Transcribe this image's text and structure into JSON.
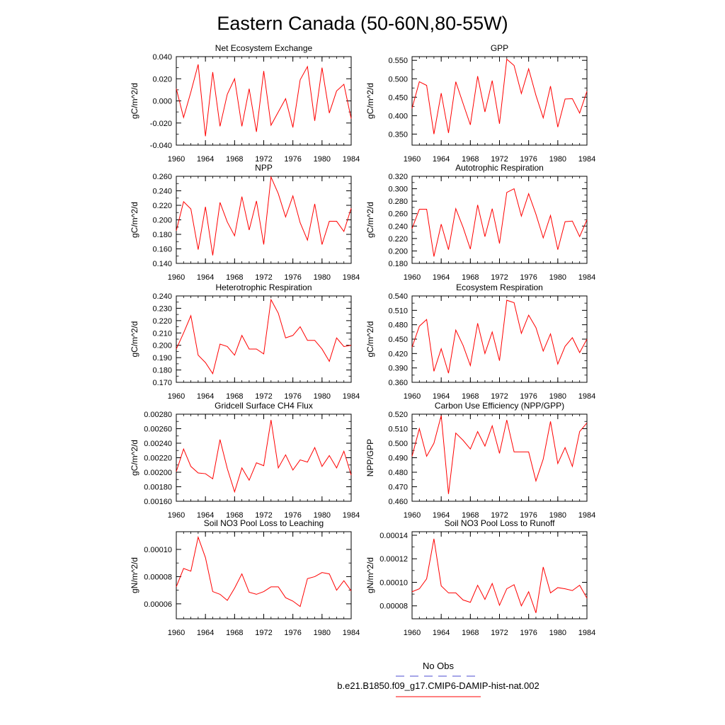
{
  "title": "Eastern Canada (50-60N,80-55W)",
  "legend": {
    "items": [
      {
        "label": "No Obs",
        "color": "#4b4bd0",
        "dash": true
      },
      {
        "label": "b.e21.B1850.f09_g17.CMIP6-DAMIP-hist-nat.002",
        "color": "#ff0000",
        "dash": false
      }
    ]
  },
  "chart_data": [
    {
      "type": "line",
      "title": "Net Ecosystem Exchange",
      "ylabel": "gC/m^2/d",
      "x": [
        1960,
        1961,
        1962,
        1963,
        1964,
        1965,
        1966,
        1967,
        1968,
        1969,
        1970,
        1971,
        1972,
        1973,
        1974,
        1975,
        1976,
        1977,
        1978,
        1979,
        1980,
        1981,
        1982,
        1983,
        1984
      ],
      "series": [
        {
          "color": "#ff0000",
          "values": [
            0.011,
            -0.015,
            0.008,
            0.033,
            -0.032,
            0.026,
            -0.023,
            0.006,
            0.02,
            -0.023,
            0.011,
            -0.028,
            0.027,
            -0.022,
            -0.01,
            0.002,
            -0.024,
            0.019,
            0.031,
            -0.018,
            0.03,
            -0.011,
            0.009,
            0.015,
            -0.016
          ]
        }
      ],
      "xlim": [
        1960,
        1984
      ],
      "ylim": [
        -0.04,
        0.04
      ],
      "xticks": [
        1960,
        1964,
        1968,
        1972,
        1976,
        1980,
        1984
      ],
      "yticks": [
        "-0.040",
        "-0.020",
        "0.000",
        "0.020",
        "0.040"
      ]
    },
    {
      "type": "line",
      "title": "GPP",
      "ylabel": "gC/m^2/d",
      "x": [
        1960,
        1961,
        1962,
        1963,
        1964,
        1965,
        1966,
        1967,
        1968,
        1969,
        1970,
        1971,
        1972,
        1973,
        1974,
        1975,
        1976,
        1977,
        1978,
        1979,
        1980,
        1981,
        1982,
        1983,
        1984
      ],
      "series": [
        {
          "color": "#ff0000",
          "values": [
            0.42,
            0.492,
            0.482,
            0.35,
            0.461,
            0.353,
            0.492,
            0.433,
            0.375,
            0.507,
            0.41,
            0.495,
            0.378,
            0.553,
            0.536,
            0.46,
            0.527,
            0.455,
            0.394,
            0.48,
            0.369,
            0.445,
            0.446,
            0.407,
            0.466
          ]
        }
      ],
      "xlim": [
        1960,
        1984
      ],
      "ylim": [
        0.32,
        0.56
      ],
      "xticks": [
        1960,
        1964,
        1968,
        1972,
        1976,
        1980,
        1984
      ],
      "yticks": [
        "0.350",
        "0.400",
        "0.450",
        "0.500",
        "0.550"
      ]
    },
    {
      "type": "line",
      "title": "NPP",
      "ylabel": "gC/m^2/d",
      "x": [
        1960,
        1961,
        1962,
        1963,
        1964,
        1965,
        1966,
        1967,
        1968,
        1969,
        1970,
        1971,
        1972,
        1973,
        1974,
        1975,
        1976,
        1977,
        1978,
        1979,
        1980,
        1981,
        1982,
        1983,
        1984
      ],
      "series": [
        {
          "color": "#ff0000",
          "values": [
            0.185,
            0.225,
            0.215,
            0.159,
            0.218,
            0.151,
            0.224,
            0.197,
            0.178,
            0.232,
            0.186,
            0.226,
            0.166,
            0.259,
            0.236,
            0.204,
            0.233,
            0.196,
            0.172,
            0.222,
            0.166,
            0.198,
            0.198,
            0.184,
            0.216
          ]
        }
      ],
      "xlim": [
        1960,
        1984
      ],
      "ylim": [
        0.14,
        0.26
      ],
      "xticks": [
        1960,
        1964,
        1968,
        1972,
        1976,
        1980,
        1984
      ],
      "yticks": [
        "0.140",
        "0.160",
        "0.180",
        "0.200",
        "0.220",
        "0.240",
        "0.260"
      ]
    },
    {
      "type": "line",
      "title": "Autotrophic Respiration",
      "ylabel": "gC/m^2/d",
      "x": [
        1960,
        1961,
        1962,
        1963,
        1964,
        1965,
        1966,
        1967,
        1968,
        1969,
        1970,
        1971,
        1972,
        1973,
        1974,
        1975,
        1976,
        1977,
        1978,
        1979,
        1980,
        1981,
        1982,
        1983,
        1984
      ],
      "series": [
        {
          "color": "#ff0000",
          "values": [
            0.236,
            0.267,
            0.267,
            0.191,
            0.243,
            0.202,
            0.268,
            0.238,
            0.203,
            0.274,
            0.223,
            0.268,
            0.212,
            0.294,
            0.3,
            0.256,
            0.292,
            0.259,
            0.221,
            0.257,
            0.202,
            0.247,
            0.248,
            0.223,
            0.25
          ]
        }
      ],
      "xlim": [
        1960,
        1984
      ],
      "ylim": [
        0.18,
        0.32
      ],
      "xticks": [
        1960,
        1964,
        1968,
        1972,
        1976,
        1980,
        1984
      ],
      "yticks": [
        "0.180",
        "0.200",
        "0.220",
        "0.240",
        "0.260",
        "0.280",
        "0.300",
        "0.320"
      ]
    },
    {
      "type": "line",
      "title": "Heterotrophic Respiration",
      "ylabel": "gC/m^2/d",
      "x": [
        1960,
        1961,
        1962,
        1963,
        1964,
        1965,
        1966,
        1967,
        1968,
        1969,
        1970,
        1971,
        1972,
        1973,
        1974,
        1975,
        1976,
        1977,
        1978,
        1979,
        1980,
        1981,
        1982,
        1983,
        1984
      ],
      "series": [
        {
          "color": "#ff0000",
          "values": [
            0.197,
            0.21,
            0.224,
            0.192,
            0.186,
            0.177,
            0.201,
            0.199,
            0.192,
            0.208,
            0.197,
            0.197,
            0.193,
            0.237,
            0.226,
            0.206,
            0.208,
            0.215,
            0.204,
            0.204,
            0.197,
            0.187,
            0.206,
            0.199,
            0.2
          ]
        }
      ],
      "xlim": [
        1960,
        1984
      ],
      "ylim": [
        0.17,
        0.24
      ],
      "xticks": [
        1960,
        1964,
        1968,
        1972,
        1976,
        1980,
        1984
      ],
      "yticks": [
        "0.170",
        "0.180",
        "0.190",
        "0.200",
        "0.210",
        "0.220",
        "0.230",
        "0.240"
      ]
    },
    {
      "type": "line",
      "title": "Ecosystem Respiration",
      "ylabel": "gC/m^2/d",
      "x": [
        1960,
        1961,
        1962,
        1963,
        1964,
        1965,
        1966,
        1967,
        1968,
        1969,
        1970,
        1971,
        1972,
        1973,
        1974,
        1975,
        1976,
        1977,
        1978,
        1979,
        1980,
        1981,
        1982,
        1983,
        1984
      ],
      "series": [
        {
          "color": "#ff0000",
          "values": [
            0.433,
            0.477,
            0.491,
            0.383,
            0.43,
            0.379,
            0.469,
            0.437,
            0.395,
            0.483,
            0.42,
            0.465,
            0.405,
            0.531,
            0.526,
            0.462,
            0.5,
            0.474,
            0.425,
            0.461,
            0.398,
            0.435,
            0.453,
            0.422,
            0.45
          ]
        }
      ],
      "xlim": [
        1960,
        1984
      ],
      "ylim": [
        0.36,
        0.54
      ],
      "xticks": [
        1960,
        1964,
        1968,
        1972,
        1976,
        1980,
        1984
      ],
      "yticks": [
        "0.360",
        "0.390",
        "0.420",
        "0.450",
        "0.480",
        "0.510",
        "0.540"
      ]
    },
    {
      "type": "line",
      "title": "Gridcell Surface CH4 Flux",
      "ylabel": "gC/m^2/d",
      "x": [
        1960,
        1961,
        1962,
        1963,
        1964,
        1965,
        1966,
        1967,
        1968,
        1969,
        1970,
        1971,
        1972,
        1973,
        1974,
        1975,
        1976,
        1977,
        1978,
        1979,
        1980,
        1981,
        1982,
        1983,
        1984
      ],
      "series": [
        {
          "color": "#ff0000",
          "values": [
            0.00201,
            0.00232,
            0.00208,
            0.00199,
            0.00198,
            0.00191,
            0.00245,
            0.00205,
            0.00173,
            0.00206,
            0.00189,
            0.00213,
            0.00209,
            0.00272,
            0.00206,
            0.00224,
            0.00203,
            0.00217,
            0.00214,
            0.00234,
            0.00208,
            0.00223,
            0.00206,
            0.00229,
            0.00196
          ]
        }
      ],
      "xlim": [
        1960,
        1984
      ],
      "ylim": [
        0.0016,
        0.0028
      ],
      "xticks": [
        1960,
        1964,
        1968,
        1972,
        1976,
        1980,
        1984
      ],
      "yticks": [
        "0.00160",
        "0.00180",
        "0.00200",
        "0.00220",
        "0.00240",
        "0.00260",
        "0.00280"
      ]
    },
    {
      "type": "line",
      "title": "Carbon Use Efficiency (NPP/GPP)",
      "ylabel": "NPP/GPP",
      "x": [
        1960,
        1961,
        1962,
        1963,
        1964,
        1965,
        1966,
        1967,
        1968,
        1969,
        1970,
        1971,
        1972,
        1973,
        1974,
        1975,
        1976,
        1977,
        1978,
        1979,
        1980,
        1981,
        1982,
        1983,
        1984
      ],
      "series": [
        {
          "color": "#ff0000",
          "values": [
            0.491,
            0.51,
            0.491,
            0.5,
            0.519,
            0.465,
            0.507,
            0.502,
            0.496,
            0.508,
            0.498,
            0.512,
            0.493,
            0.516,
            0.494,
            0.494,
            0.494,
            0.474,
            0.489,
            0.515,
            0.486,
            0.497,
            0.484,
            0.508,
            0.514
          ]
        }
      ],
      "xlim": [
        1960,
        1984
      ],
      "ylim": [
        0.46,
        0.52
      ],
      "xticks": [
        1960,
        1964,
        1968,
        1972,
        1976,
        1980,
        1984
      ],
      "yticks": [
        "0.460",
        "0.470",
        "0.480",
        "0.490",
        "0.500",
        "0.510",
        "0.520"
      ]
    },
    {
      "type": "line",
      "title": "Soil NO3 Pool Loss to Leaching",
      "ylabel": "gN/m^2/d",
      "x": [
        1960,
        1961,
        1962,
        1963,
        1964,
        1965,
        1966,
        1967,
        1968,
        1969,
        1970,
        1971,
        1972,
        1973,
        1974,
        1975,
        1976,
        1977,
        1978,
        1979,
        1980,
        1981,
        1982,
        1983,
        1984
      ],
      "series": [
        {
          "color": "#ff0000",
          "values": [
            7.25e-05,
            8.6e-05,
            8.4e-05,
            0.000109,
            9.4e-05,
            6.9e-05,
            6.7e-05,
            6.25e-05,
            7.15e-05,
            8.2e-05,
            6.85e-05,
            6.7e-05,
            6.9e-05,
            7.25e-05,
            7.25e-05,
            6.45e-05,
            6.2e-05,
            5.8e-05,
            7.85e-05,
            8e-05,
            8.3e-05,
            8.2e-05,
            7e-05,
            7.7e-05,
            6.95e-05
          ]
        }
      ],
      "xlim": [
        1960,
        1984
      ],
      "ylim": [
        4.9e-05,
        0.000113
      ],
      "xticks": [
        1960,
        1964,
        1968,
        1972,
        1976,
        1980,
        1984
      ],
      "yticks": [
        "0.00006",
        "0.00008",
        "0.00010"
      ]
    },
    {
      "type": "line",
      "title": "Soil NO3 Pool Loss to Runoff",
      "ylabel": "gN/m^2/d",
      "x": [
        1960,
        1961,
        1962,
        1963,
        1964,
        1965,
        1966,
        1967,
        1968,
        1969,
        1970,
        1971,
        1972,
        1973,
        1974,
        1975,
        1976,
        1977,
        1978,
        1979,
        1980,
        1981,
        1982,
        1983,
        1984
      ],
      "series": [
        {
          "color": "#ff0000",
          "values": [
            9.2e-05,
            9.45e-05,
            0.000103,
            0.000137,
            9.7e-05,
            9.1e-05,
            9.1e-05,
            8.5e-05,
            8.3e-05,
            9.75e-05,
            8.55e-05,
            9.9e-05,
            8.05e-05,
            9.45e-05,
            9.8e-05,
            8e-05,
            9.2e-05,
            7.4e-05,
            0.000113,
            9.1e-05,
            9.55e-05,
            9.45e-05,
            9.3e-05,
            9.75e-05,
            8.65e-05
          ]
        }
      ],
      "xlim": [
        1960,
        1984
      ],
      "ylim": [
        6.9e-05,
        0.000143
      ],
      "xticks": [
        1960,
        1964,
        1968,
        1972,
        1976,
        1980,
        1984
      ],
      "yticks": [
        "0.00008",
        "0.00010",
        "0.00012",
        "0.00014"
      ]
    }
  ]
}
